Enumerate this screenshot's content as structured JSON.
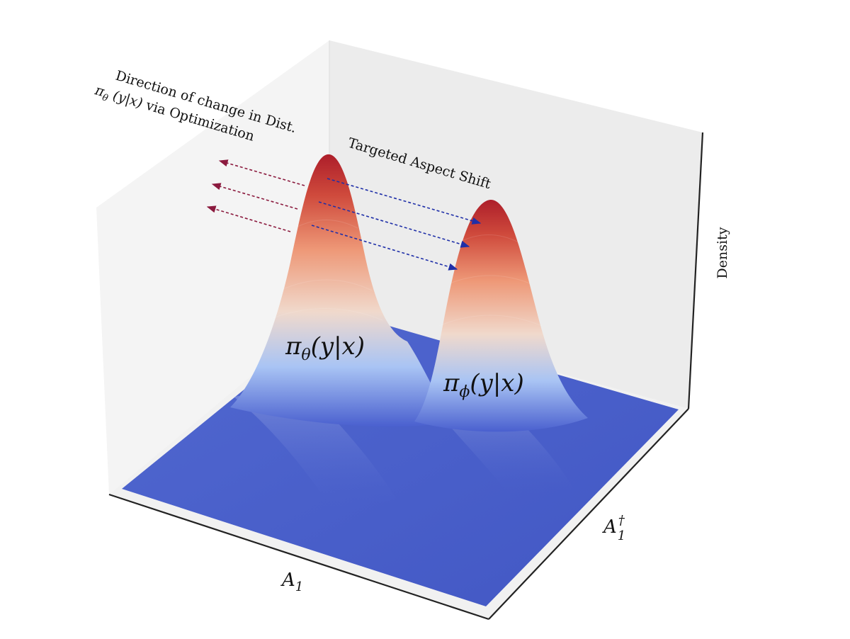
{
  "chart_data": {
    "type": "surface3d",
    "axes": {
      "x": {
        "label_base": "A",
        "label_sub": "1"
      },
      "y": {
        "label_base": "A",
        "label_sup": "†",
        "label_sub": "1"
      },
      "z": {
        "label": "Density"
      }
    },
    "colormap": "coolwarm",
    "grid": false,
    "surfaces": [
      {
        "label_base": "π",
        "label_sub": "θ",
        "label_arg": "(y|x)",
        "peak": 1.0
      },
      {
        "label_base": "π",
        "label_sub": "ϕ",
        "label_arg": "(y|x)",
        "peak": 0.88
      }
    ],
    "annotations": {
      "optimization": {
        "line1": "Direction of change in Dist.",
        "line2_base": "π",
        "line2_sub": "θ",
        "line2_arg": " (y|x)",
        "line2_rest": " via Optimization",
        "arrow_color": "#8b1a3e",
        "arrow_count": 3
      },
      "shift": {
        "text": "Targeted Aspect Shift",
        "arrow_color": "#1f2fa8",
        "arrow_count": 3
      }
    }
  }
}
